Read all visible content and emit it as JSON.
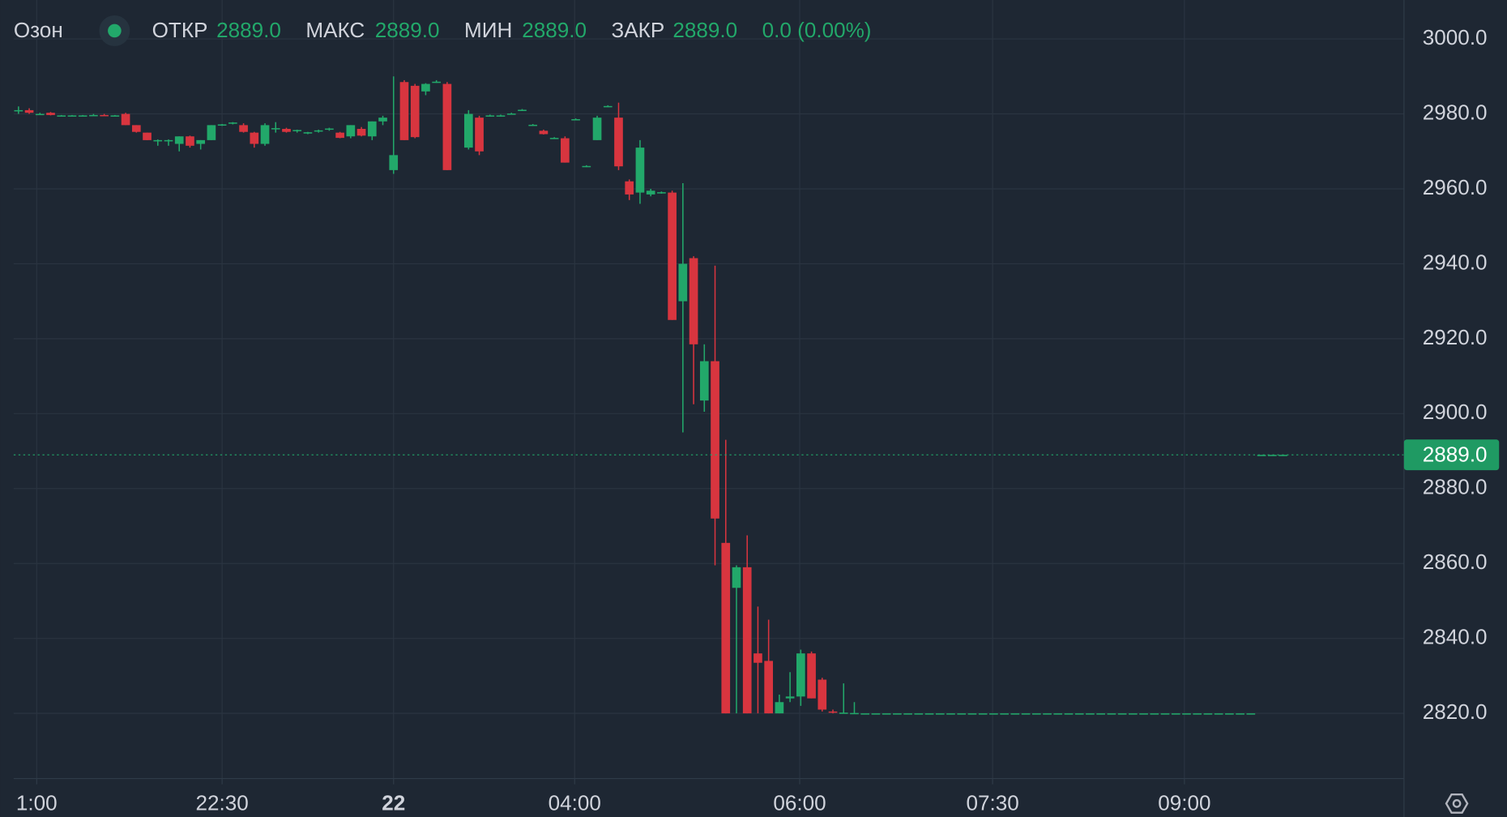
{
  "header": {
    "symbol": "Озон",
    "open_label": "ОТКР",
    "open": "2889.0",
    "high_label": "МАКС",
    "high": "2889.0",
    "low_label": "МИН",
    "low": "2889.0",
    "close_label": "ЗАКР",
    "close": "2889.0",
    "change": "0.0 (0.00%)"
  },
  "chart_data": {
    "type": "candlestick",
    "up_color": "#22a86a",
    "down_color": "#d8353f",
    "x": [
      0,
      1,
      2,
      3,
      4,
      5,
      6,
      7,
      8,
      9,
      10,
      11,
      12,
      13,
      14,
      15,
      16,
      17,
      18,
      19,
      20,
      21,
      22,
      23,
      24,
      25,
      26,
      27,
      28,
      29,
      30,
      31,
      32,
      33,
      34,
      35,
      36,
      37,
      38,
      39,
      40,
      42,
      43,
      44,
      45,
      46,
      47,
      48,
      49,
      50,
      51,
      52,
      53,
      54,
      55,
      56,
      57,
      58,
      59,
      60,
      61,
      62,
      63,
      64,
      65,
      66,
      67,
      68,
      69,
      70,
      71,
      72,
      73,
      74,
      75,
      76,
      77,
      78,
      79,
      80,
      81,
      82,
      83,
      84,
      85,
      86,
      87,
      88,
      89,
      90,
      91,
      92,
      93,
      94,
      95,
      96,
      97,
      98,
      99,
      100,
      101,
      102,
      103,
      104,
      105,
      106,
      107,
      108,
      109,
      110,
      111,
      112,
      113,
      114,
      115,
      116,
      117,
      118
    ],
    "open": [
      2981,
      2981,
      2980,
      2980.3,
      2979.6,
      2979.6,
      2979.6,
      2979.6,
      2979.7,
      2979.6,
      2980,
      2977,
      2975,
      2973,
      2973,
      2972,
      2974,
      2972,
      2973,
      2977,
      2977.5,
      2977,
      2975,
      2972,
      2976,
      2976,
      2975.5,
      2975,
      2975.5,
      2976,
      2975,
      2974,
      2976,
      2974,
      2978,
      2965,
      2988.5,
      2987.5,
      2986,
      2988.5,
      2988,
      2971,
      2979,
      2979.5,
      2979.5,
      2980,
      2981,
      2977,
      2975.5,
      2973.5,
      2973.5,
      2978.5,
      2966,
      2973,
      2982,
      2979,
      2962,
      2959,
      2958.5,
      2959,
      2959,
      2930,
      2941.5,
      2903.5,
      2914,
      2865.5,
      2853.5,
      2859,
      2836,
      2834,
      2820,
      2824,
      2824.5,
      2836,
      2829,
      2820.5,
      2820,
      2820,
      2820,
      2820,
      2820,
      2820,
      2820,
      2820,
      2820,
      2820,
      2820,
      2820,
      2820,
      2820,
      2820,
      2820,
      2820,
      2820,
      2820,
      2820,
      2820,
      2820,
      2820,
      2820,
      2820,
      2820,
      2820,
      2820,
      2820,
      2820,
      2820,
      2820,
      2820,
      2820,
      2820,
      2820,
      2820,
      2820,
      2820,
      2889,
      2889,
      2889
    ],
    "high": [
      2982,
      2981.5,
      2980.3,
      2980.5,
      2979.7,
      2979.7,
      2979.7,
      2980,
      2980,
      2979.7,
      2980.3,
      2977,
      2975,
      2973.2,
      2973.2,
      2974,
      2974.2,
      2973,
      2977,
      2977.3,
      2977.8,
      2977.5,
      2975.2,
      2977.5,
      2977.8,
      2976.3,
      2975.8,
      2975.2,
      2975.8,
      2976.3,
      2975.2,
      2977,
      2976.5,
      2978,
      2979.5,
      2990,
      2989,
      2988,
      2988.2,
      2989,
      2988.5,
      2981,
      2979.5,
      2979.8,
      2979.8,
      2980.3,
      2981.3,
      2977.3,
      2975.8,
      2973.8,
      2974,
      2978.8,
      2966.3,
      2979.5,
      2982.3,
      2983,
      2962.5,
      2973,
      2960,
      2959.3,
      2959.5,
      2961.5,
      2942,
      2918.5,
      2939.5,
      2893,
      2859.5,
      2867.5,
      2848.5,
      2845,
      2825,
      2831,
      2837,
      2836.5,
      2829.5,
      2821,
      2828,
      2823,
      2820,
      2820,
      2820,
      2820,
      2820,
      2820,
      2820,
      2820,
      2820,
      2820,
      2820,
      2820,
      2820,
      2820,
      2820,
      2820,
      2820,
      2820,
      2820,
      2820,
      2820,
      2820,
      2820,
      2820,
      2820,
      2820,
      2820,
      2820,
      2820,
      2820,
      2820,
      2820,
      2820,
      2820,
      2820,
      2820,
      2820,
      2889,
      2889,
      2889
    ],
    "low": [
      2980,
      2980,
      2979.8,
      2979.6,
      2979.5,
      2979.5,
      2979.5,
      2979.5,
      2979.5,
      2979.5,
      2977,
      2975,
      2973,
      2971.5,
      2971.5,
      2970,
      2971,
      2970.5,
      2973,
      2976.8,
      2977.2,
      2975,
      2971,
      2971.5,
      2975,
      2975,
      2975,
      2974.6,
      2975,
      2975.5,
      2973.5,
      2973.5,
      2974,
      2973,
      2977,
      2964,
      2973,
      2973.5,
      2985,
      2988.3,
      2965,
      2970.5,
      2969,
      2979.3,
      2979.3,
      2979.8,
      2980.8,
      2976.8,
      2974.5,
      2973.3,
      2967,
      2978.3,
      2965.8,
      2973,
      2981.8,
      2965,
      2957,
      2956,
      2958,
      2958.7,
      2925,
      2895,
      2902.5,
      2900.5,
      2859.5,
      2820,
      2820,
      2820,
      2820,
      2820,
      2820,
      2823,
      2822,
      2824,
      2820.5,
      2820,
      2820,
      2820,
      2820,
      2820,
      2820,
      2820,
      2820,
      2820,
      2820,
      2820,
      2820,
      2820,
      2820,
      2820,
      2820,
      2820,
      2820,
      2820,
      2820,
      2820,
      2820,
      2820,
      2820,
      2820,
      2820,
      2820,
      2820,
      2820,
      2820,
      2820,
      2820,
      2820,
      2820,
      2820,
      2820,
      2820,
      2820,
      2820,
      2820,
      2889,
      2889,
      2889
    ],
    "close": [
      2981,
      2980.3,
      2980,
      2979.7,
      2979.6,
      2979.6,
      2979.6,
      2979.7,
      2979.5,
      2979.6,
      2977,
      2975.2,
      2973,
      2973,
      2973,
      2974,
      2971.5,
      2973,
      2977,
      2977.2,
      2977.7,
      2975.2,
      2972,
      2977,
      2976.2,
      2975.2,
      2975.7,
      2975.1,
      2975.6,
      2976.1,
      2973.6,
      2977,
      2974.2,
      2978,
      2979,
      2969,
      2973,
      2973.8,
      2988,
      2988.6,
      2965,
      2980,
      2970,
      2979.6,
      2979.6,
      2980.1,
      2981.1,
      2977.1,
      2974.6,
      2973.6,
      2967,
      2978.6,
      2966.1,
      2979,
      2982.1,
      2966,
      2958.5,
      2971,
      2959.5,
      2959.1,
      2925,
      2940,
      2918.5,
      2914,
      2872,
      2820,
      2859,
      2820,
      2833.5,
      2820,
      2823,
      2824.5,
      2836,
      2824,
      2821,
      2820.2,
      2820.2,
      2820.1,
      2820,
      2820,
      2820,
      2820,
      2820,
      2820,
      2820,
      2820,
      2820,
      2820,
      2820,
      2820,
      2820,
      2820,
      2820,
      2820,
      2820,
      2820,
      2820,
      2820,
      2820,
      2820,
      2820,
      2820,
      2820,
      2820,
      2820,
      2820,
      2820,
      2820,
      2820,
      2820,
      2820,
      2820,
      2820,
      2820,
      2820,
      2889,
      2889,
      2889
    ],
    "xlim": [
      -0.45,
      129.2
    ],
    "ylim": [
      2802.6,
      3010.4
    ],
    "xticks": [
      {
        "value": 1.7,
        "label": "1:00"
      },
      {
        "value": 19,
        "label": "22:30"
      },
      {
        "value": 35,
        "label": "22"
      },
      {
        "value": 51.9,
        "label": "04:00"
      },
      {
        "value": 72.9,
        "label": "06:00"
      },
      {
        "value": 90.9,
        "label": "07:30"
      },
      {
        "value": 108.8,
        "label": "09:00"
      }
    ],
    "yticks": [
      {
        "value": 2820,
        "label": "2820.0"
      },
      {
        "value": 2840,
        "label": "2840.0"
      },
      {
        "value": 2860,
        "label": "2860.0"
      },
      {
        "value": 2880,
        "label": "2880.0"
      },
      {
        "value": 2900,
        "label": "2900.0"
      },
      {
        "value": 2920,
        "label": "2920.0"
      },
      {
        "value": 2940,
        "label": "2940.0"
      },
      {
        "value": 2960,
        "label": "2960.0"
      },
      {
        "value": 2980,
        "label": "2980.0"
      },
      {
        "value": 3000,
        "label": "3000.0"
      }
    ],
    "grid": true,
    "last_price": {
      "value": 2889,
      "label": "2889.0"
    }
  }
}
